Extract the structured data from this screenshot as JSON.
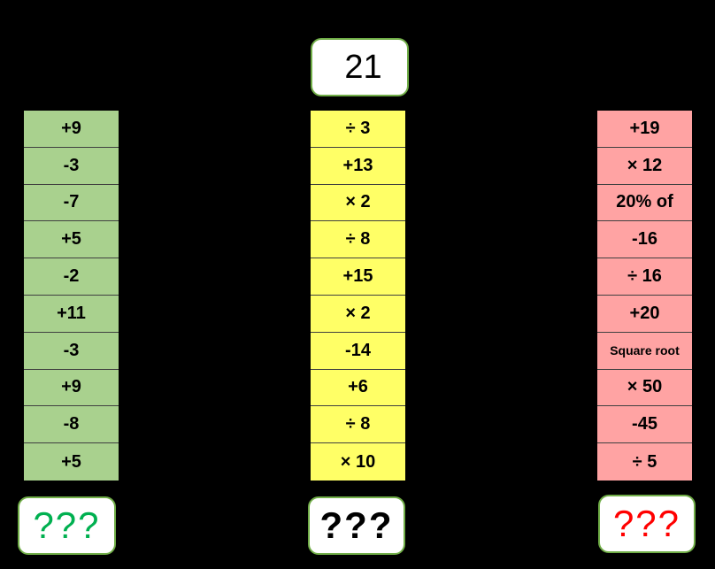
{
  "start_number": "21",
  "columns": [
    {
      "color": "#a9d18e",
      "answer": "???",
      "answer_color": "#00b050",
      "operations": [
        "+9",
        "-3",
        "-7",
        "+5",
        "-2",
        "+11",
        "-3",
        "+9",
        "-8",
        "+5"
      ]
    },
    {
      "color": "#ffff66",
      "answer": "???",
      "answer_color": "#000000",
      "operations": [
        "÷ 3",
        "+13",
        "× 2",
        "÷ 8",
        "+15",
        "× 2",
        "-14",
        "+6",
        "÷ 8",
        "× 10"
      ]
    },
    {
      "color": "#ffa3a3",
      "answer": "???",
      "answer_color": "#ff0000",
      "operations": [
        "+19",
        "× 12",
        "20%  of",
        "-16",
        "÷ 16",
        "+20",
        "Square root",
        "× 50",
        "-45",
        "÷ 5"
      ]
    }
  ]
}
